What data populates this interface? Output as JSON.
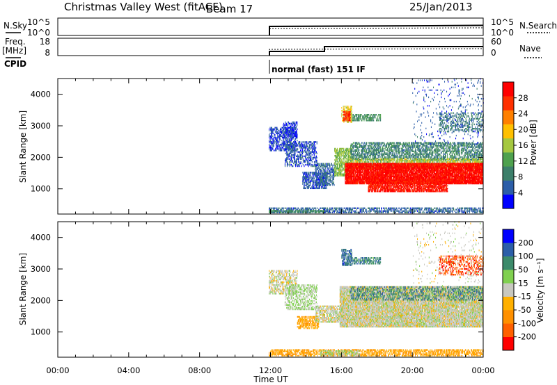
{
  "header": {
    "station": "Christmas Valley West (fitACF)",
    "beam": "Beam 17",
    "date": "25/Jan/2013"
  },
  "params": {
    "nsky_label": "N.Sky",
    "nsky_ticks": [
      "10^5",
      "10^0"
    ],
    "nsearch_label": "N.Search",
    "nsearch_ticks": [
      "10^5",
      "10^0"
    ],
    "freq_label": "Freq.",
    "freq_unit": "[MHz]",
    "freq_ticks": [
      "18",
      "8"
    ],
    "nave_label": "Nave",
    "nave_ticks": [
      "60",
      "0"
    ],
    "cpid_label": "CPID",
    "cpid_text": "normal (fast) 151 IF"
  },
  "colors": {
    "power": [
      "#0000ff",
      "#2c5ea8",
      "#3c7f6a",
      "#4ea14e",
      "#a5c840",
      "#ffc000",
      "#ff8000",
      "#ff3000",
      "#ff0000"
    ],
    "velocity": [
      "#ff0000",
      "#ff6000",
      "#ff9000",
      "#ffb000",
      "#c8c8c0",
      "#80d050",
      "#3c8a6a",
      "#2c5ea8",
      "#0000ff"
    ]
  },
  "chart_data": [
    {
      "type": "heatmap",
      "name": "power",
      "ylabel": "Slant Range [km]",
      "ylim": [
        200,
        4500
      ],
      "yticks": [
        "1000",
        "2000",
        "3000",
        "4000"
      ],
      "xlim": [
        0,
        24
      ],
      "colorbar": {
        "label": "Power [dB]",
        "range": [
          0,
          32
        ],
        "ticks": [
          "4",
          "8",
          "12",
          "16",
          "20",
          "24",
          "28"
        ]
      },
      "regions": [
        {
          "t0": 11.9,
          "t1": 24.0,
          "r0": 230,
          "r1": 400,
          "value": 6,
          "density": 0.55
        },
        {
          "t0": 11.9,
          "t1": 15.0,
          "r0": 240,
          "r1": 330,
          "value": 10,
          "density": 0.5
        },
        {
          "t0": 11.9,
          "t1": 13.5,
          "r0": 2200,
          "r1": 2950,
          "value": 4,
          "density": 0.5
        },
        {
          "t0": 12.7,
          "t1": 13.5,
          "r0": 2600,
          "r1": 3100,
          "value": 4,
          "density": 0.45
        },
        {
          "t0": 12.8,
          "t1": 14.6,
          "r0": 1700,
          "r1": 2500,
          "value": 5,
          "density": 0.45
        },
        {
          "t0": 13.8,
          "t1": 15.2,
          "r0": 1000,
          "r1": 1500,
          "value": 5,
          "density": 0.6
        },
        {
          "t0": 14.5,
          "t1": 15.6,
          "r0": 1100,
          "r1": 1800,
          "value": 6,
          "density": 0.55
        },
        {
          "t0": 15.6,
          "t1": 16.6,
          "r0": 1400,
          "r1": 2300,
          "value": 15,
          "density": 0.7
        },
        {
          "t0": 16.0,
          "t1": 16.6,
          "r0": 3100,
          "r1": 3600,
          "value": 18,
          "density": 0.6
        },
        {
          "t0": 16.1,
          "t1": 16.5,
          "r0": 3150,
          "r1": 3450,
          "value": 27,
          "density": 0.8
        },
        {
          "t0": 16.6,
          "t1": 18.2,
          "r0": 3150,
          "r1": 3350,
          "value": 10,
          "density": 0.55
        },
        {
          "t0": 16.5,
          "t1": 24.0,
          "r0": 1900,
          "r1": 2450,
          "value": 9,
          "density": 0.55
        },
        {
          "t0": 16.5,
          "t1": 24.0,
          "r0": 1650,
          "r1": 1950,
          "value": 16,
          "density": 0.6
        },
        {
          "t0": 16.2,
          "t1": 24.0,
          "r0": 1150,
          "r1": 1800,
          "value": 30,
          "density": 0.92
        },
        {
          "t0": 17.5,
          "t1": 22.0,
          "r0": 900,
          "r1": 1300,
          "value": 29,
          "density": 0.75
        },
        {
          "t0": 21.5,
          "t1": 24.0,
          "r0": 2800,
          "r1": 3400,
          "value": 8,
          "density": 0.3
        },
        {
          "t0": 20.0,
          "t1": 24.0,
          "r0": 2400,
          "r1": 4500,
          "value": 5,
          "density": 0.05
        }
      ]
    },
    {
      "type": "heatmap",
      "name": "velocity",
      "ylabel": "Slant Range [km]",
      "ylim": [
        200,
        4500
      ],
      "yticks": [
        "1000",
        "2000",
        "3000",
        "4000"
      ],
      "xlim": [
        0,
        24
      ],
      "xlabel": "Time UT",
      "xticks": [
        "00:00",
        "04:00",
        "08:00",
        "12:00",
        "16:00",
        "20:00",
        "00:00"
      ],
      "colorbar": {
        "label": "Velocity [m s⁻¹]",
        "range": [
          -250,
          250
        ],
        "ticks": [
          "200",
          "100",
          "50",
          "15",
          "-15",
          "-50",
          "-100",
          "-200"
        ]
      },
      "regions": [
        {
          "t0": 11.9,
          "t1": 24.0,
          "r0": 230,
          "r1": 420,
          "value": -80,
          "density": 0.55
        },
        {
          "t0": 14.8,
          "t1": 17.0,
          "r0": 240,
          "r1": 400,
          "value": 30,
          "density": 0.5
        },
        {
          "t0": 11.9,
          "t1": 13.5,
          "r0": 2200,
          "r1": 2950,
          "value": 0,
          "density": 0.45
        },
        {
          "t0": 12.8,
          "t1": 14.6,
          "r0": 1700,
          "r1": 2500,
          "value": 30,
          "density": 0.45
        },
        {
          "t0": 13.5,
          "t1": 14.7,
          "r0": 1100,
          "r1": 1500,
          "value": -75,
          "density": 0.6
        },
        {
          "t0": 14.5,
          "t1": 16.2,
          "r0": 1300,
          "r1": 1800,
          "value": 0,
          "density": 0.6
        },
        {
          "t0": 15.9,
          "t1": 24.0,
          "r0": 1150,
          "r1": 2450,
          "value": 0,
          "density": 0.9
        },
        {
          "t0": 16.0,
          "t1": 16.6,
          "r0": 3100,
          "r1": 3600,
          "value": 150,
          "density": 0.6
        },
        {
          "t0": 16.6,
          "t1": 18.2,
          "r0": 3150,
          "r1": 3350,
          "value": 120,
          "density": 0.55
        },
        {
          "t0": 16.5,
          "t1": 24.0,
          "r0": 2000,
          "r1": 2450,
          "value": 120,
          "density": 0.3
        },
        {
          "t0": 21.5,
          "t1": 24.0,
          "r0": 2800,
          "r1": 3400,
          "value": -180,
          "density": 0.35
        },
        {
          "t0": 20.0,
          "t1": 24.0,
          "r0": 2400,
          "r1": 4500,
          "value": 0,
          "density": 0.04
        }
      ]
    }
  ]
}
